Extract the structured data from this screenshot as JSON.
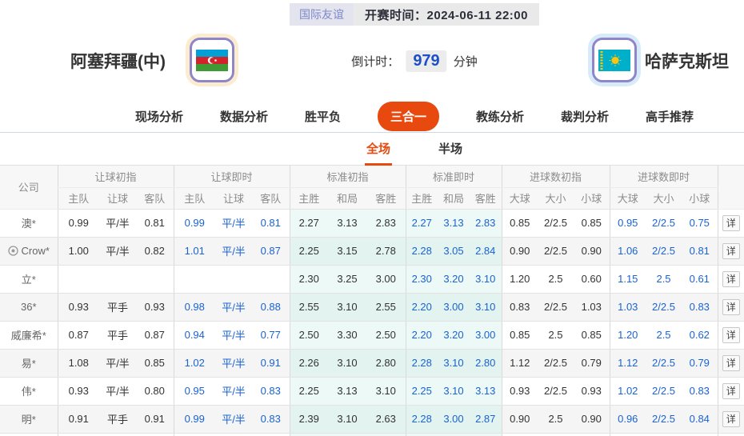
{
  "header": {
    "league_badge": "国际友谊",
    "kickoff": "开赛时间：2024-06-11 22:00",
    "home_name": "阿塞拜疆(中)",
    "away_name": "哈萨克斯坦",
    "countdown_label": "倒计时：",
    "countdown_value": "979",
    "countdown_unit": "分钟"
  },
  "nav": {
    "tabs": [
      {
        "label": "现场分析",
        "active": false
      },
      {
        "label": "数据分析",
        "active": false
      },
      {
        "label": "胜平负",
        "active": false
      },
      {
        "label": "三合一",
        "active": true
      },
      {
        "label": "教练分析",
        "active": false
      },
      {
        "label": "裁判分析",
        "active": false
      },
      {
        "label": "高手推荐",
        "active": false
      }
    ]
  },
  "subtabs": [
    {
      "label": "全场",
      "active": true
    },
    {
      "label": "半场",
      "active": false
    }
  ],
  "table": {
    "company_header": "公司",
    "detail_label": "详",
    "groups": [
      {
        "label": "让球初指",
        "cols": [
          "主队",
          "让球",
          "客队"
        ],
        "live": false,
        "teal": false
      },
      {
        "label": "让球即时",
        "cols": [
          "主队",
          "让球",
          "客队"
        ],
        "live": true,
        "teal": false
      },
      {
        "label": "标准初指",
        "cols": [
          "主胜",
          "和局",
          "客胜"
        ],
        "live": false,
        "teal": true
      },
      {
        "label": "标准即时",
        "cols": [
          "主胜",
          "和局",
          "客胜"
        ],
        "live": true,
        "teal": true
      },
      {
        "label": "进球数初指",
        "cols": [
          "大球",
          "大小",
          "小球"
        ],
        "live": false,
        "teal": false
      },
      {
        "label": "进球数即时",
        "cols": [
          "大球",
          "大小",
          "小球"
        ],
        "live": true,
        "teal": false
      }
    ],
    "rows": [
      {
        "company": "澳*",
        "icon": false,
        "cells": [
          [
            "0.99",
            "平/半",
            "0.81"
          ],
          [
            "0.99",
            "平/半",
            "0.81"
          ],
          [
            "2.27",
            "3.13",
            "2.83"
          ],
          [
            "2.27",
            "3.13",
            "2.83"
          ],
          [
            "0.85",
            "2/2.5",
            "0.85"
          ],
          [
            "0.95",
            "2/2.5",
            "0.75"
          ]
        ]
      },
      {
        "company": "Crow*",
        "icon": true,
        "cells": [
          [
            "1.00",
            "平/半",
            "0.82"
          ],
          [
            "1.01",
            "平/半",
            "0.87"
          ],
          [
            "2.25",
            "3.15",
            "2.78"
          ],
          [
            "2.28",
            "3.05",
            "2.84"
          ],
          [
            "0.90",
            "2/2.5",
            "0.90"
          ],
          [
            "1.06",
            "2/2.5",
            "0.81"
          ]
        ]
      },
      {
        "company": "立*",
        "icon": false,
        "cells": [
          [
            "",
            "",
            ""
          ],
          [
            "",
            "",
            ""
          ],
          [
            "2.30",
            "3.25",
            "3.00"
          ],
          [
            "2.30",
            "3.20",
            "3.10"
          ],
          [
            "1.20",
            "2.5",
            "0.60"
          ],
          [
            "1.15",
            "2.5",
            "0.61"
          ]
        ]
      },
      {
        "company": "36*",
        "icon": false,
        "cells": [
          [
            "0.93",
            "平手",
            "0.93"
          ],
          [
            "0.98",
            "平/半",
            "0.88"
          ],
          [
            "2.55",
            "3.10",
            "2.55"
          ],
          [
            "2.20",
            "3.00",
            "3.10"
          ],
          [
            "0.83",
            "2/2.5",
            "1.03"
          ],
          [
            "1.03",
            "2/2.5",
            "0.83"
          ]
        ]
      },
      {
        "company": "威廉希*",
        "icon": false,
        "cells": [
          [
            "0.87",
            "平手",
            "0.87"
          ],
          [
            "0.94",
            "平/半",
            "0.77"
          ],
          [
            "2.50",
            "3.30",
            "2.50"
          ],
          [
            "2.20",
            "3.20",
            "3.00"
          ],
          [
            "0.85",
            "2.5",
            "0.85"
          ],
          [
            "1.20",
            "2.5",
            "0.62"
          ]
        ]
      },
      {
        "company": "易*",
        "icon": false,
        "cells": [
          [
            "1.08",
            "平/半",
            "0.85"
          ],
          [
            "1.02",
            "平/半",
            "0.91"
          ],
          [
            "2.26",
            "3.10",
            "2.80"
          ],
          [
            "2.28",
            "3.10",
            "2.80"
          ],
          [
            "1.12",
            "2/2.5",
            "0.79"
          ],
          [
            "1.12",
            "2/2.5",
            "0.79"
          ]
        ]
      },
      {
        "company": "伟*",
        "icon": false,
        "cells": [
          [
            "0.93",
            "平/半",
            "0.80"
          ],
          [
            "0.95",
            "平/半",
            "0.83"
          ],
          [
            "2.25",
            "3.13",
            "3.10"
          ],
          [
            "2.25",
            "3.10",
            "3.13"
          ],
          [
            "0.93",
            "2/2.5",
            "0.93"
          ],
          [
            "1.02",
            "2/2.5",
            "0.83"
          ]
        ]
      },
      {
        "company": "明*",
        "icon": false,
        "cells": [
          [
            "0.91",
            "平手",
            "0.91"
          ],
          [
            "0.99",
            "平/半",
            "0.83"
          ],
          [
            "2.39",
            "3.10",
            "2.63"
          ],
          [
            "2.28",
            "3.00",
            "2.87"
          ],
          [
            "0.90",
            "2.5",
            "0.90"
          ],
          [
            "0.96",
            "2/2.5",
            "0.84"
          ]
        ]
      }
    ]
  },
  "colors": {
    "accent_orange": "#e8490f",
    "live_blue": "#1a63d2",
    "teal_cell": "#ecf9f6",
    "badge_text": "#7e89cb",
    "countdown_blue": "#1b50c8",
    "home_halo": "#fbecd0",
    "away_halo": "#d7ebfa",
    "flag_border_purple": "#8f85c9"
  }
}
